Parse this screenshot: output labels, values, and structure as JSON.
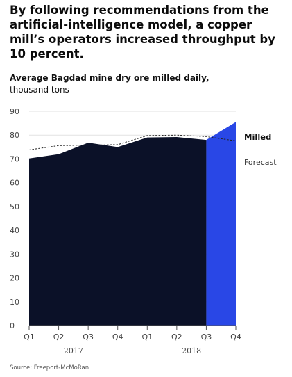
{
  "headline": "By following recommendations from the artificial-intelligence model, a copper mill’s operators increased throughput by 10 percent.",
  "subtitle_line1": "Average Bagdad mine dry ore milled daily,",
  "subtitle_line2": "thousand tons",
  "source": "Source: Freeport-McMoRan",
  "colors": {
    "actual": "#0b1128",
    "milled_ai": "#2947e6",
    "forecast": "#222222",
    "grid": "#e2e2e2",
    "axis": "#555555"
  },
  "chart_data": {
    "type": "area",
    "ylim": [
      0,
      90
    ],
    "yticks": [
      0,
      10,
      20,
      30,
      40,
      50,
      60,
      70,
      80,
      90
    ],
    "categories": [
      "Q1",
      "Q2",
      "Q3",
      "Q4",
      "Q1",
      "Q2",
      "Q3",
      "Q4"
    ],
    "years": [
      {
        "label": "2017",
        "quarters": [
          0,
          3
        ]
      },
      {
        "label": "2018",
        "quarters": [
          4,
          7
        ]
      }
    ],
    "series": [
      {
        "name": "Milled",
        "values": [
          70.2,
          72,
          76.8,
          75,
          79,
          79.2,
          78,
          85.5
        ]
      },
      {
        "name": "Forecast",
        "values": [
          73.8,
          75.6,
          75.8,
          76,
          79.8,
          80,
          79.4,
          77.6
        ]
      }
    ]
  }
}
